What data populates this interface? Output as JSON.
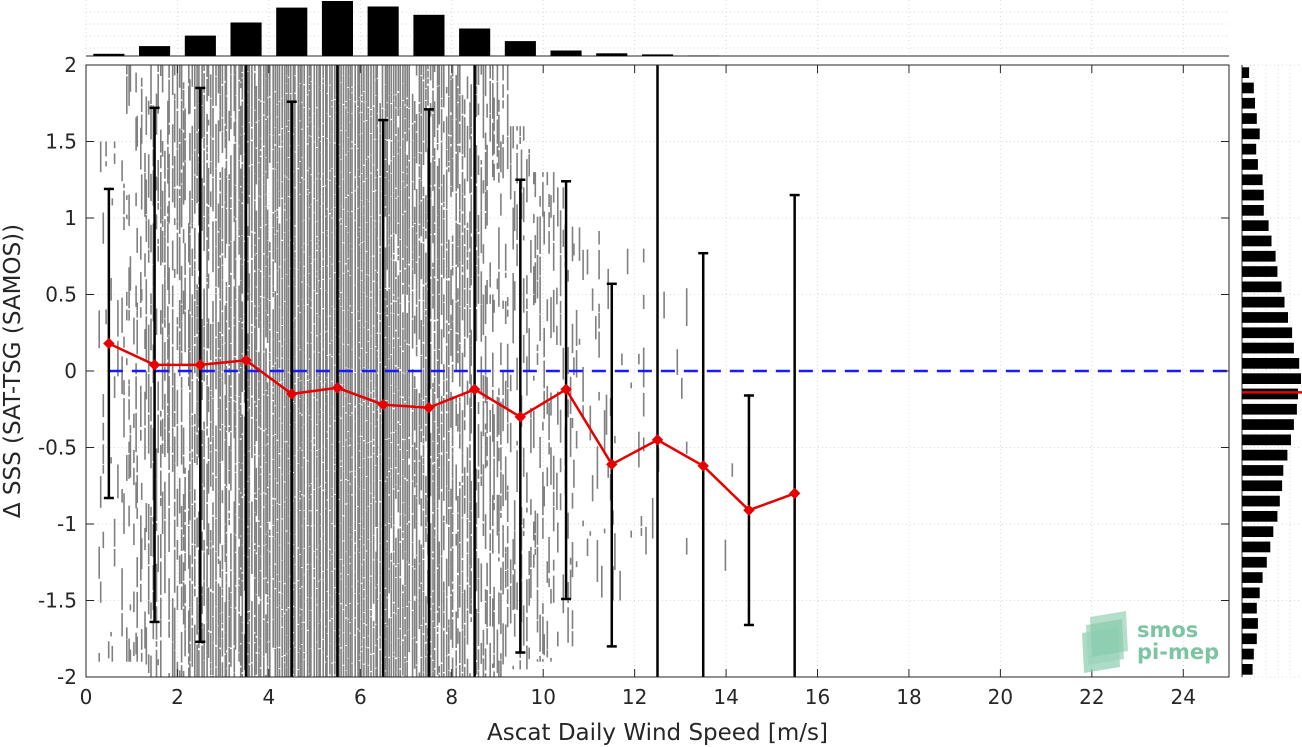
{
  "chart_data": {
    "type": "scatter",
    "xlabel": "Ascat Daily Wind Speed [m/s]",
    "ylabel": "Δ SSS (SAT-TSG (SAMOS))",
    "xlim": [
      0,
      25
    ],
    "ylim": [
      -2,
      2
    ],
    "xticks": [
      0,
      2,
      4,
      6,
      8,
      10,
      12,
      14,
      16,
      18,
      20,
      22,
      24
    ],
    "yticks": [
      -2,
      -1.5,
      -1,
      -0.5,
      0,
      0.5,
      1,
      1.5,
      2
    ],
    "grid": true,
    "reference_line": {
      "y": 0,
      "style": "dashed",
      "color": "#1a1aff"
    },
    "scatter_color": "#808080",
    "scatter_columns": [
      {
        "x": 0.5,
        "ymin": -1.9,
        "ymax": 1.5,
        "density": 0.15
      },
      {
        "x": 1.0,
        "ymin": -1.9,
        "ymax": 2.0,
        "density": 0.35
      },
      {
        "x": 1.5,
        "ymin": -2.0,
        "ymax": 2.0,
        "density": 0.5
      },
      {
        "x": 2.0,
        "ymin": -2.0,
        "ymax": 2.0,
        "density": 0.65
      },
      {
        "x": 2.5,
        "ymin": -2.0,
        "ymax": 2.0,
        "density": 0.75
      },
      {
        "x": 3.0,
        "ymin": -2.0,
        "ymax": 2.0,
        "density": 0.85
      },
      {
        "x": 3.5,
        "ymin": -2.0,
        "ymax": 2.0,
        "density": 0.9
      },
      {
        "x": 4.0,
        "ymin": -2.0,
        "ymax": 2.0,
        "density": 0.95
      },
      {
        "x": 4.5,
        "ymin": -2.0,
        "ymax": 2.0,
        "density": 1.0
      },
      {
        "x": 5.0,
        "ymin": -2.0,
        "ymax": 2.0,
        "density": 1.0
      },
      {
        "x": 5.5,
        "ymin": -2.0,
        "ymax": 2.0,
        "density": 1.0
      },
      {
        "x": 6.0,
        "ymin": -2.0,
        "ymax": 2.0,
        "density": 1.0
      },
      {
        "x": 6.5,
        "ymin": -2.0,
        "ymax": 2.0,
        "density": 0.95
      },
      {
        "x": 7.0,
        "ymin": -2.0,
        "ymax": 2.0,
        "density": 0.9
      },
      {
        "x": 7.5,
        "ymin": -2.0,
        "ymax": 2.0,
        "density": 0.85
      },
      {
        "x": 8.0,
        "ymin": -2.0,
        "ymax": 2.0,
        "density": 0.75
      },
      {
        "x": 8.5,
        "ymin": -2.0,
        "ymax": 2.0,
        "density": 0.65
      },
      {
        "x": 9.0,
        "ymin": -2.0,
        "ymax": 2.0,
        "density": 0.5
      },
      {
        "x": 9.5,
        "ymin": -1.95,
        "ymax": 1.6,
        "density": 0.4
      },
      {
        "x": 10.0,
        "ymin": -1.9,
        "ymax": 1.3,
        "density": 0.3
      },
      {
        "x": 10.5,
        "ymin": -1.8,
        "ymax": 1.2,
        "density": 0.22
      },
      {
        "x": 11.0,
        "ymin": -1.6,
        "ymax": 1.0,
        "density": 0.15
      },
      {
        "x": 11.5,
        "ymin": -1.5,
        "ymax": 0.8,
        "density": 0.1
      },
      {
        "x": 12.0,
        "ymin": -1.3,
        "ymax": 0.8,
        "density": 0.07
      },
      {
        "x": 12.5,
        "ymin": -1.2,
        "ymax": 0.6,
        "density": 0.05
      },
      {
        "x": 13.0,
        "ymin": -1.2,
        "ymax": 0.6,
        "density": 0.04
      },
      {
        "x": 13.5,
        "ymin": -1.0,
        "ymax": 0.5,
        "density": 0.03
      },
      {
        "x": 14.0,
        "ymin": -1.5,
        "ymax": -0.2,
        "density": 0.02
      },
      {
        "x": 15.0,
        "ymin": -1.0,
        "ymax": 0.0,
        "density": 0.01
      }
    ],
    "series": [
      {
        "line_color": "#e60000",
        "x": [
          0.5,
          1.5,
          2.5,
          3.5,
          4.5,
          5.5,
          6.5,
          7.5,
          8.5,
          9.5,
          10.5,
          11.5,
          12.5,
          13.5,
          14.5,
          15.5
        ],
        "mean": [
          0.18,
          0.04,
          0.04,
          0.07,
          -0.15,
          -0.11,
          -0.22,
          -0.24,
          -0.12,
          -0.3,
          -0.12,
          -0.61,
          -0.45,
          -0.62,
          -0.91,
          -0.8
        ],
        "err_low": [
          -0.83,
          -1.64,
          -1.77,
          -2.0,
          -2.0,
          -2.0,
          -2.0,
          -2.0,
          -2.0,
          -1.84,
          -1.49,
          -1.8,
          -2.0,
          -2.0,
          -1.66,
          -2.0
        ],
        "err_high": [
          1.19,
          1.72,
          1.85,
          2.0,
          1.76,
          2.0,
          1.64,
          1.71,
          2.0,
          1.25,
          1.24,
          0.57,
          2.0,
          0.77,
          -0.16,
          1.15
        ]
      }
    ],
    "top_histogram": {
      "bin_centers": [
        0.5,
        1.5,
        2.5,
        3.5,
        4.5,
        5.5,
        6.5,
        7.5,
        8.5,
        9.5,
        10.5,
        11.5,
        12.5,
        13.5
      ],
      "relative_counts": [
        0.04,
        0.18,
        0.37,
        0.61,
        0.88,
        1.0,
        0.9,
        0.75,
        0.5,
        0.27,
        0.1,
        0.05,
        0.03,
        0.01
      ],
      "color": "#000000"
    },
    "right_histogram": {
      "bin_centers": [
        1.95,
        1.85,
        1.75,
        1.65,
        1.55,
        1.45,
        1.35,
        1.25,
        1.15,
        1.05,
        0.95,
        0.85,
        0.75,
        0.65,
        0.55,
        0.45,
        0.35,
        0.25,
        0.15,
        0.05,
        -0.05,
        -0.15,
        -0.25,
        -0.35,
        -0.45,
        -0.55,
        -0.65,
        -0.75,
        -0.85,
        -0.95,
        -1.05,
        -1.15,
        -1.25,
        -1.35,
        -1.45,
        -1.55,
        -1.65,
        -1.75,
        -1.85,
        -1.95
      ],
      "relative_counts": [
        0.12,
        0.2,
        0.22,
        0.25,
        0.3,
        0.24,
        0.27,
        0.35,
        0.37,
        0.37,
        0.45,
        0.5,
        0.57,
        0.6,
        0.67,
        0.72,
        0.78,
        0.85,
        0.88,
        0.97,
        1.0,
        0.95,
        0.93,
        0.88,
        0.83,
        0.77,
        0.7,
        0.68,
        0.64,
        0.6,
        0.53,
        0.48,
        0.42,
        0.35,
        0.3,
        0.25,
        0.27,
        0.25,
        0.2,
        0.18
      ],
      "median_line": {
        "y": -0.14,
        "color": "#e60000"
      },
      "color": "#000000"
    }
  },
  "logo": {
    "line1": "smos",
    "line2": "pi-mep"
  }
}
